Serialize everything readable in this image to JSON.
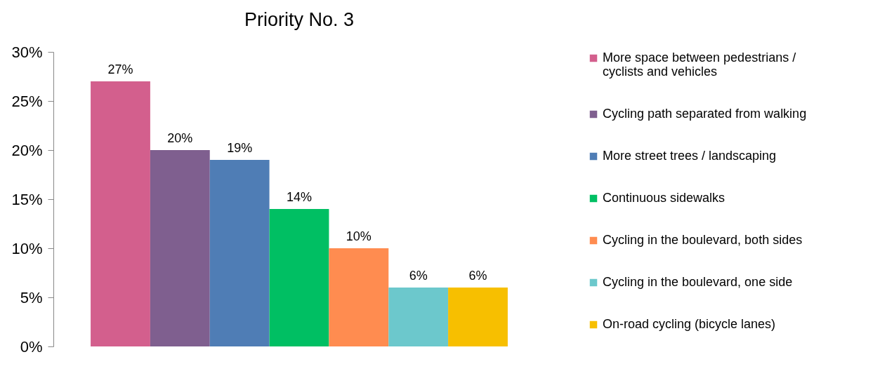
{
  "chart_data": {
    "type": "bar",
    "title": "Priority No. 3",
    "categories": [
      null
    ],
    "series": [
      {
        "name": "More space between pedestrians / cyclists and vehicles",
        "color": "#d35f8d",
        "values": [
          27
        ],
        "value_labels": [
          "27%"
        ]
      },
      {
        "name": "Cycling path separated from walking",
        "color": "#7f5f8f",
        "values": [
          20
        ],
        "value_labels": [
          "20%"
        ]
      },
      {
        "name": "More street trees / landscaping",
        "color": "#4f7db5",
        "values": [
          19
        ],
        "value_labels": [
          "19%"
        ]
      },
      {
        "name": "Continuous sidewalks",
        "color": "#00bf63",
        "values": [
          14
        ],
        "value_labels": [
          "14%"
        ]
      },
      {
        "name": "Cycling in the boulevard,  both sides",
        "color": "#ff8c50",
        "values": [
          10
        ],
        "value_labels": [
          "10%"
        ]
      },
      {
        "name": "Cycling in the boulevard, one side",
        "color": "#6cc8cc",
        "values": [
          6
        ],
        "value_labels": [
          "6%"
        ]
      },
      {
        "name": "On-road cycling (bicycle lanes)",
        "color": "#f7bf00",
        "values": [
          6
        ],
        "value_labels": [
          "6%"
        ]
      }
    ],
    "ylim": [
      0,
      30
    ],
    "yticks": [
      {
        "value": 0,
        "label": "0%"
      },
      {
        "value": 5,
        "label": "5%"
      },
      {
        "value": 10,
        "label": "10%"
      },
      {
        "value": 15,
        "label": "15%"
      },
      {
        "value": 20,
        "label": "20%"
      },
      {
        "value": 25,
        "label": "25%"
      },
      {
        "value": 30,
        "label": "30%"
      }
    ],
    "legend": "right"
  }
}
